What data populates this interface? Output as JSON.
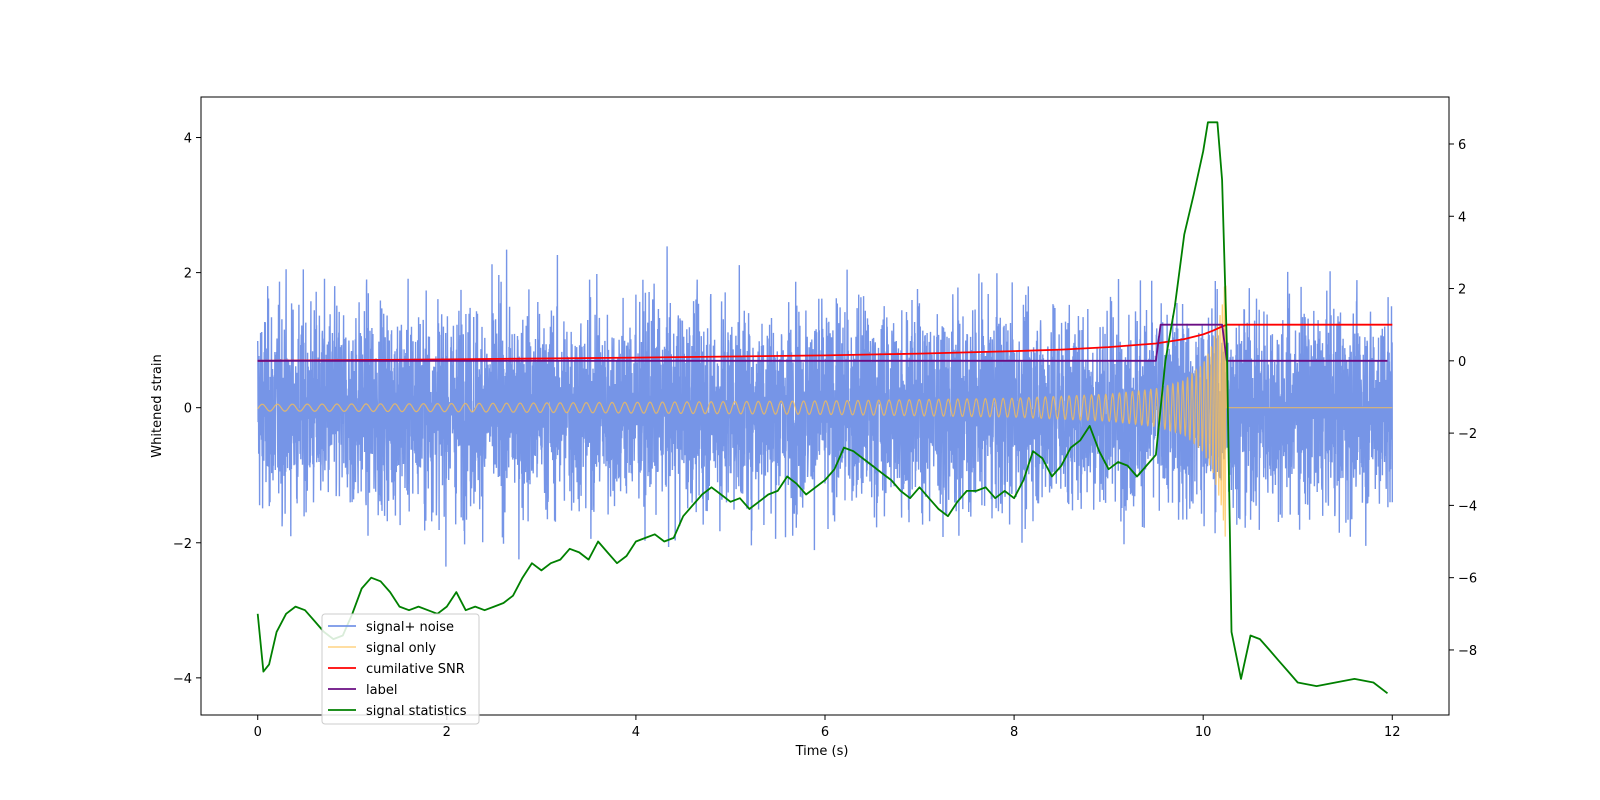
{
  "chart_data": {
    "type": "line",
    "xlabel": "Time (s)",
    "ylabel": "Whitened strain",
    "y2label": "",
    "xlim": [
      -0.6,
      12.6
    ],
    "ylim": [
      -4.55,
      4.6
    ],
    "y2lim": [
      -9.8,
      7.3
    ],
    "xticks": [
      0,
      2,
      4,
      6,
      8,
      10,
      12
    ],
    "xtick_labels": [
      "0",
      "2",
      "4",
      "6",
      "8",
      "10",
      "12"
    ],
    "yticks": [
      -4,
      -2,
      0,
      2,
      4
    ],
    "ytick_labels": [
      "−4",
      "−2",
      "0",
      "2",
      "4"
    ],
    "y2ticks": [
      -8,
      -6,
      -4,
      -2,
      0,
      2,
      4,
      6
    ],
    "y2tick_labels": [
      "−8",
      "−6",
      "−4",
      "−2",
      "0",
      "2",
      "4",
      "6"
    ],
    "grid": false,
    "legend_position": "lower-left",
    "noise_band": {
      "lower": -1.5,
      "upper": 1.4,
      "peak_max": 4.2,
      "peak_min": -4.1
    },
    "series": [
      {
        "name": "signal+ noise",
        "axis": "left",
        "color": "#6f8fe6",
        "kind": "noise",
        "x_range": [
          0,
          12
        ]
      },
      {
        "name": "signal only",
        "axis": "left",
        "color": "#ffc04d",
        "kind": "chirp",
        "x": [
          0,
          2,
          4,
          6,
          8,
          9,
          9.5,
          9.8,
          10.0,
          10.1,
          10.2,
          10.24
        ],
        "amplitude": [
          0.05,
          0.06,
          0.08,
          0.1,
          0.14,
          0.2,
          0.28,
          0.4,
          0.65,
          0.95,
          1.5,
          2.0
        ]
      },
      {
        "name": "cumilative SNR",
        "axis": "right",
        "color": "#ff0000",
        "x": [
          0,
          2,
          4,
          6,
          7,
          8,
          8.5,
          9,
          9.5,
          9.8,
          10.0,
          10.1,
          10.2,
          10.25,
          12
        ],
        "y": [
          0.0,
          0.04,
          0.09,
          0.15,
          0.2,
          0.27,
          0.31,
          0.38,
          0.48,
          0.6,
          0.73,
          0.83,
          0.95,
          1.0,
          1.0
        ]
      },
      {
        "name": "label",
        "axis": "right",
        "color": "#6a0d83",
        "x": [
          0,
          9.5,
          9.55,
          10.2,
          10.25,
          11.95
        ],
        "y": [
          0,
          0,
          1,
          1,
          0,
          0
        ]
      },
      {
        "name": "signal statistics",
        "axis": "right",
        "color": "#008000",
        "x": [
          0,
          0.06,
          0.12,
          0.2,
          0.3,
          0.4,
          0.5,
          0.6,
          0.7,
          0.8,
          0.9,
          1.0,
          1.1,
          1.2,
          1.3,
          1.4,
          1.5,
          1.6,
          1.7,
          1.8,
          1.9,
          2.0,
          2.1,
          2.2,
          2.3,
          2.4,
          2.5,
          2.6,
          2.7,
          2.8,
          2.9,
          3.0,
          3.1,
          3.2,
          3.3,
          3.4,
          3.5,
          3.6,
          3.7,
          3.8,
          3.9,
          4.0,
          4.1,
          4.2,
          4.3,
          4.4,
          4.5,
          4.6,
          4.7,
          4.8,
          4.9,
          5.0,
          5.1,
          5.2,
          5.3,
          5.4,
          5.5,
          5.6,
          5.7,
          5.8,
          5.9,
          6.0,
          6.1,
          6.2,
          6.3,
          6.4,
          6.5,
          6.6,
          6.7,
          6.8,
          6.9,
          7.0,
          7.1,
          7.2,
          7.3,
          7.4,
          7.5,
          7.6,
          7.7,
          7.8,
          7.9,
          8.0,
          8.1,
          8.2,
          8.3,
          8.4,
          8.5,
          8.6,
          8.7,
          8.8,
          8.9,
          9.0,
          9.1,
          9.2,
          9.3,
          9.4,
          9.5,
          9.6,
          9.7,
          9.8,
          9.9,
          10.0,
          10.05,
          10.15,
          10.2,
          10.25,
          10.3,
          10.4,
          10.5,
          10.6,
          10.7,
          10.8,
          10.9,
          11.0,
          11.2,
          11.4,
          11.6,
          11.8,
          11.95
        ],
        "y": [
          -7.0,
          -8.6,
          -8.4,
          -7.5,
          -7.0,
          -6.8,
          -6.9,
          -7.2,
          -7.5,
          -7.7,
          -7.6,
          -7.0,
          -6.3,
          -6.0,
          -6.1,
          -6.4,
          -6.8,
          -6.9,
          -6.8,
          -6.9,
          -7.0,
          -6.8,
          -6.4,
          -6.9,
          -6.8,
          -6.9,
          -6.8,
          -6.7,
          -6.5,
          -6.0,
          -5.6,
          -5.8,
          -5.6,
          -5.5,
          -5.2,
          -5.3,
          -5.5,
          -5.0,
          -5.3,
          -5.6,
          -5.4,
          -5.0,
          -4.9,
          -4.8,
          -5.0,
          -4.9,
          -4.3,
          -4.0,
          -3.7,
          -3.5,
          -3.7,
          -3.9,
          -3.8,
          -4.1,
          -3.9,
          -3.7,
          -3.6,
          -3.2,
          -3.4,
          -3.7,
          -3.5,
          -3.3,
          -3.0,
          -2.4,
          -2.5,
          -2.7,
          -2.9,
          -3.1,
          -3.3,
          -3.6,
          -3.8,
          -3.5,
          -3.8,
          -4.1,
          -4.3,
          -3.9,
          -3.6,
          -3.6,
          -3.5,
          -3.8,
          -3.6,
          -3.8,
          -3.3,
          -2.5,
          -2.7,
          -3.2,
          -2.9,
          -2.4,
          -2.2,
          -1.8,
          -2.5,
          -3.0,
          -2.8,
          -2.9,
          -3.2,
          -2.9,
          -2.6,
          0.0,
          1.5,
          3.5,
          4.6,
          5.8,
          6.6,
          6.6,
          5.0,
          0.5,
          -7.5,
          -8.8,
          -7.6,
          -7.7,
          -8.0,
          -8.3,
          -8.6,
          -8.9,
          -9.0,
          -8.9,
          -8.8,
          -8.9,
          -9.2
        ]
      }
    ]
  }
}
